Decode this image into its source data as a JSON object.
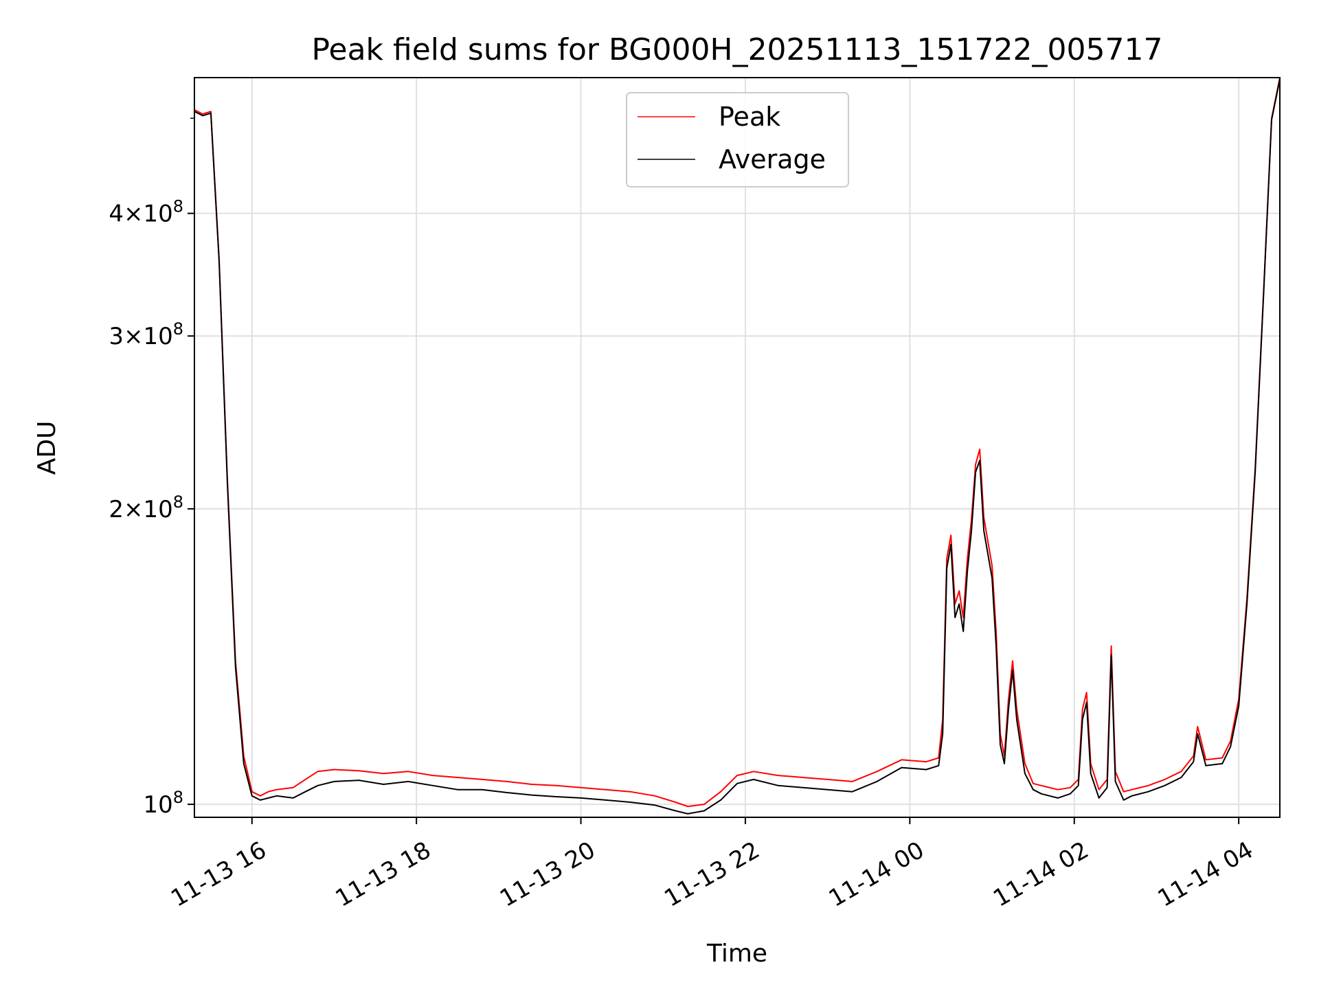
{
  "chart_data": {
    "type": "line",
    "title": "Peak field sums for BG000H_20251113_151722_005717",
    "xlabel": "Time",
    "ylabel": "ADU",
    "x_unit": "hours since 2025-11-13 00:00",
    "xlim": [
      15.3,
      28.5
    ],
    "ylim": [
      97000000,
      550000000
    ],
    "yscale": "log",
    "grid": true,
    "legend_position": "upper-center",
    "x_ticks": [
      {
        "value": 16,
        "label": "11-13 16"
      },
      {
        "value": 18,
        "label": "11-13 18"
      },
      {
        "value": 20,
        "label": "11-13 20"
      },
      {
        "value": 22,
        "label": "11-13 22"
      },
      {
        "value": 24,
        "label": "11-14 00"
      },
      {
        "value": 26,
        "label": "11-14 02"
      },
      {
        "value": 28,
        "label": "11-14 04"
      }
    ],
    "y_ticks": [
      {
        "value": 100000000,
        "mantissa": "",
        "exp": "8",
        "label": "10^8"
      },
      {
        "value": 200000000,
        "mantissa": "2",
        "exp": "8",
        "label": "2×10^8"
      },
      {
        "value": 300000000,
        "mantissa": "3",
        "exp": "8",
        "label": "3×10^8"
      },
      {
        "value": 400000000,
        "mantissa": "4",
        "exp": "8",
        "label": "4×10^8"
      }
    ],
    "y_minor_ticks": [
      500000000
    ],
    "series": [
      {
        "name": "Peak",
        "color": "#ff0000",
        "x": [
          15.3,
          15.4,
          15.5,
          15.6,
          15.7,
          15.8,
          15.9,
          16.0,
          16.1,
          16.2,
          16.3,
          16.5,
          16.65,
          16.8,
          17.0,
          17.3,
          17.6,
          17.9,
          18.2,
          18.5,
          18.8,
          19.1,
          19.4,
          19.7,
          20.0,
          20.3,
          20.6,
          20.9,
          21.15,
          21.3,
          21.5,
          21.7,
          21.9,
          22.1,
          22.4,
          22.7,
          23.0,
          23.3,
          23.6,
          23.9,
          24.2,
          24.35,
          24.4,
          24.45,
          24.5,
          24.55,
          24.6,
          24.65,
          24.7,
          24.75,
          24.8,
          24.85,
          24.9,
          25.0,
          25.05,
          25.1,
          25.15,
          25.2,
          25.25,
          25.3,
          25.4,
          25.5,
          25.6,
          25.8,
          25.95,
          26.05,
          26.1,
          26.15,
          26.2,
          26.3,
          26.4,
          26.45,
          26.5,
          26.6,
          26.7,
          26.9,
          27.1,
          27.3,
          27.45,
          27.5,
          27.6,
          27.8,
          27.9,
          28.0,
          28.1,
          28.2,
          28.3,
          28.4,
          28.5
        ],
        "y": [
          510000000,
          505000000,
          508000000,
          360000000,
          215000000,
          140000000,
          112000000,
          103000000,
          102000000,
          103000000,
          103500000,
          104000000,
          106000000,
          108000000,
          108500000,
          108200000,
          107500000,
          108000000,
          107000000,
          106500000,
          106000000,
          105500000,
          104800000,
          104500000,
          104000000,
          103500000,
          103000000,
          102000000,
          100500000,
          99500000,
          100000000,
          103000000,
          107000000,
          108000000,
          107000000,
          106500000,
          106000000,
          105500000,
          108000000,
          111000000,
          110500000,
          111500000,
          122000000,
          178000000,
          188000000,
          160000000,
          165000000,
          155000000,
          178000000,
          195000000,
          222000000,
          230000000,
          196000000,
          175000000,
          150000000,
          118000000,
          112000000,
          128000000,
          140000000,
          125000000,
          110000000,
          105000000,
          104500000,
          103500000,
          104000000,
          106000000,
          125000000,
          130000000,
          110000000,
          103500000,
          106000000,
          145000000,
          108000000,
          103000000,
          103500000,
          104500000,
          106000000,
          108000000,
          112000000,
          120000000,
          111000000,
          111500000,
          116000000,
          128000000,
          162000000,
          220000000,
          330000000,
          500000000,
          550000000
        ]
      },
      {
        "name": "Average",
        "color": "#000000",
        "x": [
          15.3,
          15.4,
          15.5,
          15.6,
          15.7,
          15.8,
          15.9,
          16.0,
          16.1,
          16.2,
          16.3,
          16.5,
          16.65,
          16.8,
          17.0,
          17.3,
          17.6,
          17.9,
          18.2,
          18.5,
          18.8,
          19.1,
          19.4,
          19.7,
          20.0,
          20.3,
          20.6,
          20.9,
          21.15,
          21.3,
          21.5,
          21.7,
          21.9,
          22.1,
          22.4,
          22.7,
          23.0,
          23.3,
          23.6,
          23.9,
          24.2,
          24.35,
          24.4,
          24.45,
          24.5,
          24.55,
          24.6,
          24.65,
          24.7,
          24.75,
          24.8,
          24.85,
          24.9,
          25.0,
          25.05,
          25.1,
          25.15,
          25.2,
          25.25,
          25.3,
          25.4,
          25.5,
          25.6,
          25.8,
          25.95,
          26.05,
          26.1,
          26.15,
          26.2,
          26.3,
          26.4,
          26.45,
          26.5,
          26.6,
          26.7,
          26.9,
          27.1,
          27.3,
          27.45,
          27.5,
          27.6,
          27.8,
          27.9,
          28.0,
          28.1,
          28.2,
          28.3,
          28.4,
          28.5
        ],
        "y": [
          508000000,
          503000000,
          506000000,
          358000000,
          213000000,
          138000000,
          110000000,
          102000000,
          101000000,
          101500000,
          102000000,
          101500000,
          103000000,
          104500000,
          105500000,
          105800000,
          104800000,
          105500000,
          104500000,
          103500000,
          103500000,
          102800000,
          102200000,
          101800000,
          101500000,
          101000000,
          100500000,
          99800000,
          98500000,
          97800000,
          98500000,
          101000000,
          105000000,
          106000000,
          104500000,
          104000000,
          103500000,
          103000000,
          105500000,
          109000000,
          108500000,
          109500000,
          118000000,
          174000000,
          184000000,
          155000000,
          160000000,
          150000000,
          173000000,
          190000000,
          218000000,
          224000000,
          190000000,
          170000000,
          145000000,
          115000000,
          110000000,
          125000000,
          137000000,
          122000000,
          107500000,
          103500000,
          102500000,
          101500000,
          102500000,
          104500000,
          122000000,
          127000000,
          107500000,
          101500000,
          104000000,
          142000000,
          105500000,
          101000000,
          102000000,
          103000000,
          104500000,
          106500000,
          110500000,
          118000000,
          109500000,
          110000000,
          114500000,
          126000000,
          160000000,
          218000000,
          328000000,
          498000000,
          548000000
        ]
      }
    ]
  }
}
